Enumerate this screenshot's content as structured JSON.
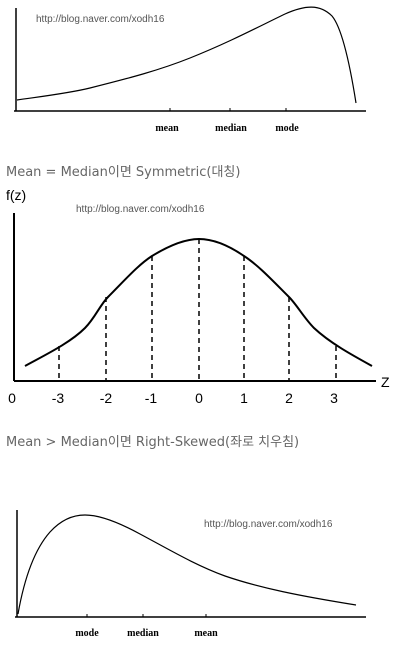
{
  "top_figure": {
    "watermark": "http://blog.naver.com/xodh16",
    "labels": [
      "mean",
      "median",
      "mode"
    ]
  },
  "caption_symmetric": "Mean = Median이면 Symmetric(대칭)",
  "middle_figure": {
    "watermark": "http://blog.naver.com/xodh16",
    "y_label": "f(z)",
    "x_label": "Z",
    "origin_label": "0",
    "tick_labels": [
      "-3",
      "-2",
      "-1",
      "0",
      "1",
      "2",
      "3"
    ]
  },
  "caption_right_skewed": "Mean > Median이면 Right-Skewed(좌로 치우침)",
  "bottom_figure": {
    "watermark": "http://blog.naver.com/xodh16",
    "labels": [
      "mode",
      "median",
      "mean"
    ]
  }
}
